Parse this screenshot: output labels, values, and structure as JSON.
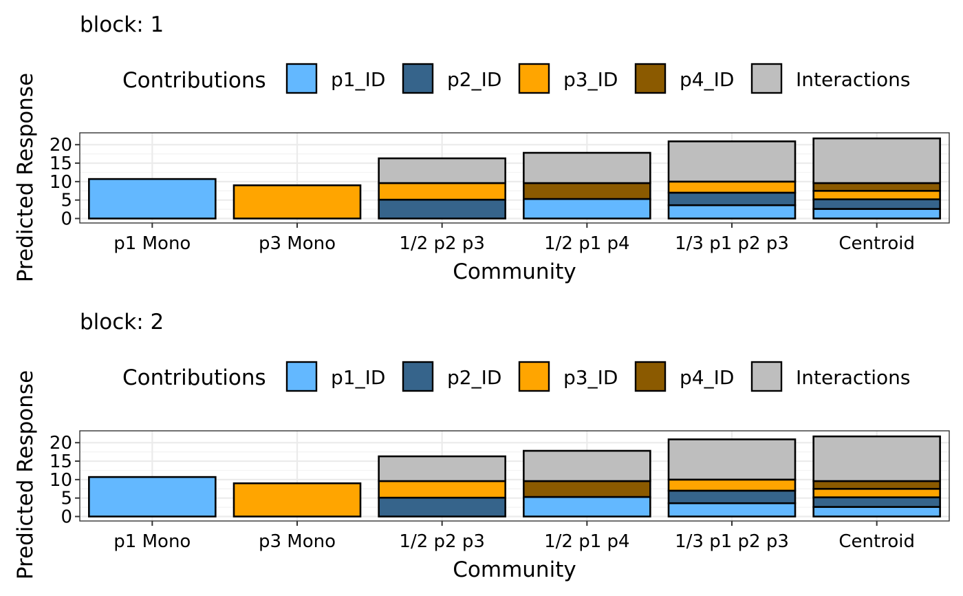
{
  "chart_data": [
    {
      "type": "bar",
      "stacked": true,
      "title": "block: 1",
      "xlabel": "Community",
      "ylabel": "Predicted Response",
      "ylim": [
        0,
        22
      ],
      "yticks": [
        0,
        5,
        10,
        15,
        20
      ],
      "legend_title": "Contributions",
      "legend_position": "top",
      "categories": [
        "p1 Mono",
        "p3 Mono",
        "1/2 p2 p3",
        "1/2 p1 p4",
        "1/3 p1 p2 p3",
        "Centroid"
      ],
      "series": [
        {
          "name": "p1_ID",
          "color": "#63B8FF",
          "values": [
            10.7,
            0,
            0,
            5.3,
            3.6,
            2.6
          ]
        },
        {
          "name": "p2_ID",
          "color": "#36648B",
          "values": [
            0,
            0,
            5.1,
            0,
            3.4,
            2.6
          ]
        },
        {
          "name": "p3_ID",
          "color": "#FFA500",
          "values": [
            0,
            9.0,
            4.5,
            0,
            3.0,
            2.3
          ]
        },
        {
          "name": "p4_ID",
          "color": "#8B5A00",
          "values": [
            0,
            0,
            0,
            4.3,
            0,
            2.1
          ]
        },
        {
          "name": "Interactions",
          "color": "#BEBEBE",
          "values": [
            0,
            0,
            6.7,
            8.2,
            10.9,
            12.1
          ]
        }
      ]
    },
    {
      "type": "bar",
      "stacked": true,
      "title": "block: 2",
      "xlabel": "Community",
      "ylabel": "Predicted Response",
      "ylim": [
        0,
        22
      ],
      "yticks": [
        0,
        5,
        10,
        15,
        20
      ],
      "legend_title": "Contributions",
      "legend_position": "top",
      "categories": [
        "p1 Mono",
        "p3 Mono",
        "1/2 p2 p3",
        "1/2 p1 p4",
        "1/3 p1 p2 p3",
        "Centroid"
      ],
      "series": [
        {
          "name": "p1_ID",
          "color": "#63B8FF",
          "values": [
            10.7,
            0,
            0,
            5.3,
            3.6,
            2.6
          ]
        },
        {
          "name": "p2_ID",
          "color": "#36648B",
          "values": [
            0,
            0,
            5.1,
            0,
            3.4,
            2.6
          ]
        },
        {
          "name": "p3_ID",
          "color": "#FFA500",
          "values": [
            0,
            9.0,
            4.5,
            0,
            3.0,
            2.3
          ]
        },
        {
          "name": "p4_ID",
          "color": "#8B5A00",
          "values": [
            0,
            0,
            0,
            4.3,
            0,
            2.1
          ]
        },
        {
          "name": "Interactions",
          "color": "#BEBEBE",
          "values": [
            0,
            0,
            6.7,
            8.2,
            10.9,
            12.1
          ]
        }
      ]
    }
  ]
}
